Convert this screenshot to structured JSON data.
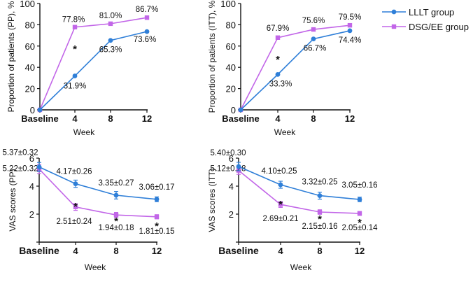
{
  "colors": {
    "lllt": "#2f7fd8",
    "dsg": "#c266e8"
  },
  "legend": {
    "lllt": "LLLT group",
    "dsg": "DSG/EE group"
  },
  "chart_data": [
    {
      "type": "line",
      "categories": [
        "Baseline",
        "4",
        "8",
        "12"
      ],
      "xlabel": "Week",
      "ylabel": "Proportion of patients (PP), %",
      "ylim": [
        0,
        100
      ],
      "yticks": [
        "0",
        "20",
        "40",
        "60",
        "80",
        "100"
      ],
      "series": [
        {
          "name": "LLLT group",
          "values": [
            0,
            31.9,
            65.3,
            73.6
          ],
          "labels": [
            "",
            "31.9%",
            "65.3%",
            "73.6%"
          ]
        },
        {
          "name": "DSG/EE group",
          "values": [
            0,
            77.8,
            81.0,
            86.7
          ],
          "labels": [
            "",
            "77.8%",
            "81.0%",
            "86.7%"
          ]
        }
      ],
      "annotations": [
        {
          "category": "4",
          "text": "*"
        }
      ]
    },
    {
      "type": "line",
      "categories": [
        "Baseline",
        "4",
        "8",
        "12"
      ],
      "xlabel": "Week",
      "ylabel": "Proportion of patients (ITT), %",
      "ylim": [
        0,
        100
      ],
      "yticks": [
        "0",
        "20",
        "40",
        "60",
        "80",
        "100"
      ],
      "series": [
        {
          "name": "LLLT group",
          "values": [
            0,
            33.3,
            66.7,
            74.4
          ],
          "labels": [
            "",
            "33.3%",
            "66.7%",
            "74.4%"
          ]
        },
        {
          "name": "DSG/EE group",
          "values": [
            0,
            67.9,
            75.6,
            79.5
          ],
          "labels": [
            "",
            "67.9%",
            "75.6%",
            "79.5%"
          ]
        }
      ],
      "annotations": [
        {
          "category": "4",
          "text": "*"
        }
      ]
    },
    {
      "type": "line",
      "categories": [
        "Baseline",
        "4",
        "8",
        "12"
      ],
      "xlabel": "Week",
      "ylabel": "VAS scores (PP)",
      "ylim": [
        0,
        6
      ],
      "yticks": [
        "",
        "2",
        "4",
        "6"
      ],
      "series": [
        {
          "name": "LLLT group",
          "values": [
            5.37,
            4.17,
            3.35,
            3.06
          ],
          "errors": [
            0.32,
            0.26,
            0.27,
            0.17
          ],
          "labels": [
            "5.37±0.32",
            "4.17±0.26",
            "3.35±0.27",
            "3.06±0.17"
          ]
        },
        {
          "name": "DSG/EE group",
          "values": [
            5.22,
            2.51,
            1.94,
            1.81
          ],
          "errors": [
            0.32,
            0.24,
            0.18,
            0.15
          ],
          "labels": [
            "5.22±0.32",
            "2.51±0.24",
            "1.94±0.18",
            "1.81±0.15"
          ]
        }
      ],
      "annotations": [
        {
          "category": "4",
          "text": "*"
        },
        {
          "category": "8",
          "text": "*"
        },
        {
          "category": "12",
          "text": "*"
        }
      ]
    },
    {
      "type": "line",
      "categories": [
        "Baseline",
        "4",
        "8",
        "12"
      ],
      "xlabel": "Week",
      "ylabel": "VAS scores (ITT)",
      "ylim": [
        0,
        6
      ],
      "yticks": [
        "",
        "2",
        "4",
        "6"
      ],
      "series": [
        {
          "name": "LLLT group",
          "values": [
            5.4,
            4.1,
            3.32,
            3.05
          ],
          "errors": [
            0.3,
            0.25,
            0.25,
            0.16
          ],
          "labels": [
            "5.40±0.30",
            "4.10±0.25",
            "3.32±0.25",
            "3.05±0.16"
          ]
        },
        {
          "name": "DSG/EE group",
          "values": [
            5.12,
            2.69,
            2.15,
            2.05
          ],
          "errors": [
            0.28,
            0.21,
            0.16,
            0.14
          ],
          "labels": [
            "5.12±0.28",
            "2.69±0.21",
            "2.15±0.16",
            "2.05±0.14"
          ]
        }
      ],
      "annotations": [
        {
          "category": "4",
          "text": "*"
        },
        {
          "category": "8",
          "text": "*"
        },
        {
          "category": "12",
          "text": "*"
        }
      ]
    }
  ]
}
